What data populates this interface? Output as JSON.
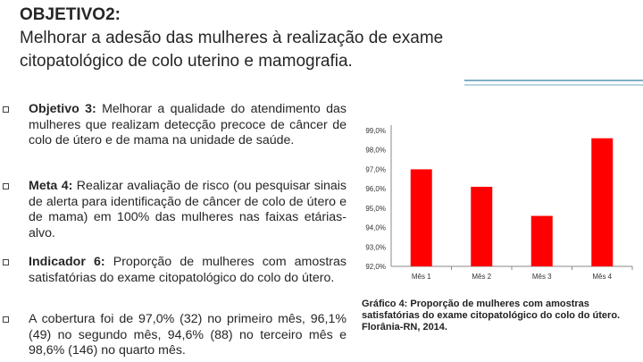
{
  "title": {
    "heading": "OBJETIVO2:",
    "line1": "Melhorar a adesão das mulheres à realização de exame",
    "line2": "citopatológico de colo uterino e mamografia."
  },
  "bullets": [
    {
      "bold": "Objetivo 3:",
      "text": " Melhorar a qualidade do atendimento das mulheres que realizam detecção precoce de câncer de colo de útero e de mama na unidade de saúde."
    },
    {
      "bold": "Meta 4:",
      "text": " Realizar avaliação de risco (ou pesquisar sinais de alerta para identificação de câncer de colo de útero e de mama) em 100% das mulheres nas faixas etárias-alvo."
    },
    {
      "bold": "Indicador 6:",
      "text": " Proporção de mulheres com amostras satisfatórias do exame citopatológico do colo do útero."
    },
    {
      "bold": "",
      "text": "A cobertura foi de 97,0% (32) no primeiro mês, 96,1% (49) no segundo mês, 94,6% (88) no terceiro mês e 98,6% (146) no quarto mês."
    }
  ],
  "chart_data": {
    "type": "bar",
    "categories": [
      "Mês 1",
      "Mês 2",
      "Mês 3",
      "Mês 4"
    ],
    "values": [
      97.0,
      96.1,
      94.6,
      98.6
    ],
    "yticks": [
      "92,0%",
      "93,0%",
      "94,0%",
      "95,0%",
      "96,0%",
      "97,0%",
      "98,0%",
      "99,0%"
    ],
    "ylim": [
      92,
      99
    ],
    "grid": false,
    "bar_color": "#ff0000"
  },
  "caption": "Gráfico 4: Proporção de mulheres com amostras satisfatórias do exame citopatológico do colo do útero. Florânia-RN, 2014."
}
